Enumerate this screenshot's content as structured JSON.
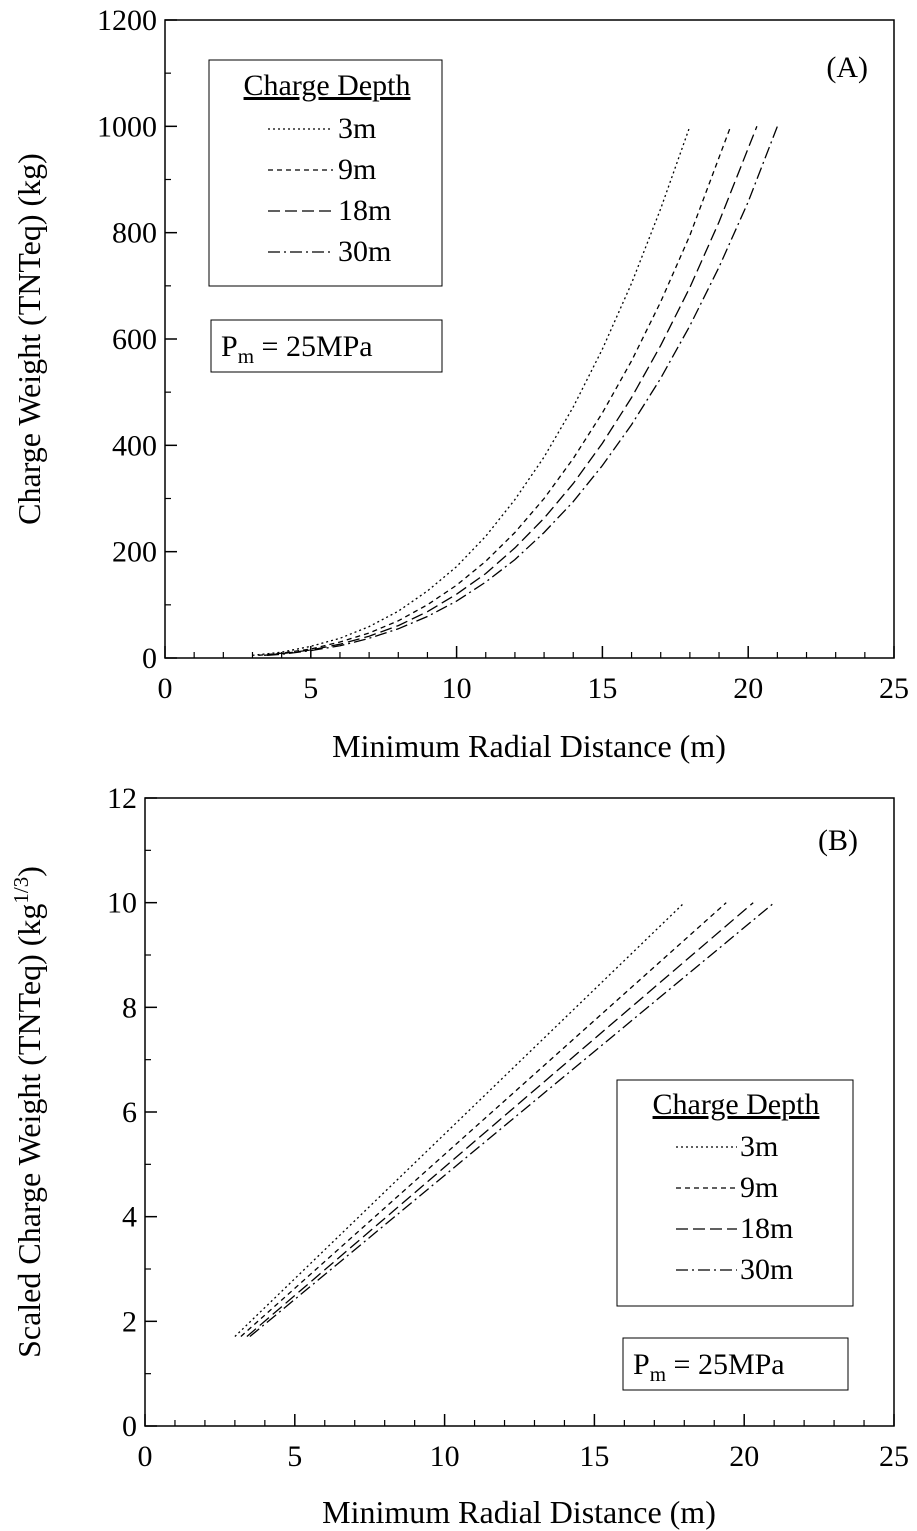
{
  "chart_data": [
    {
      "type": "line",
      "panel_label": "(A)",
      "xlabel": "Minimum Radial Distance (m)",
      "ylabel": "Charge Weight (TNTeq) (kg)",
      "xlim": [
        0,
        25
      ],
      "ylim": [
        0,
        1200
      ],
      "x_ticks": [
        0,
        5,
        10,
        15,
        20,
        25
      ],
      "y_ticks": [
        0,
        200,
        400,
        600,
        800,
        1000,
        1200
      ],
      "grid": false,
      "legend_title": "Charge Depth",
      "legend_placement": "top-left",
      "annotation": {
        "main": "P",
        "sub": "m",
        "rest": " = 25MPa"
      },
      "series": [
        {
          "name": "3m",
          "dash": "2,3",
          "x": [
            3.0,
            4.0,
            5.0,
            6.0,
            7.0,
            8.0,
            9.0,
            10.0,
            11.0,
            12.0,
            13.0,
            14.0,
            15.0,
            16.0,
            17.0,
            18.0
          ],
          "y": [
            5,
            11,
            22,
            37,
            59,
            88,
            126,
            172,
            229,
            298,
            378,
            472,
            581,
            705,
            845,
            1000
          ]
        },
        {
          "name": "9m",
          "dash": "5,4",
          "x": [
            3.2,
            4.0,
            5.0,
            6.0,
            7.0,
            8.0,
            9.0,
            10.0,
            11.0,
            12.0,
            13.0,
            14.0,
            15.0,
            16.0,
            17.0,
            18.0,
            19.4
          ],
          "y": [
            5,
            9,
            17,
            30,
            47,
            70,
            100,
            137,
            182,
            236,
            300,
            375,
            461,
            559,
            670,
            795,
            1000
          ]
        },
        {
          "name": "18m",
          "dash": "12,5",
          "x": [
            3.4,
            4.0,
            5.0,
            6.0,
            7.0,
            8.0,
            9.0,
            10.0,
            11.0,
            12.0,
            13.0,
            14.0,
            15.0,
            16.0,
            17.0,
            18.0,
            19.0,
            20.3
          ],
          "y": [
            5,
            8,
            15,
            26,
            41,
            61,
            87,
            120,
            159,
            207,
            263,
            328,
            404,
            490,
            588,
            697,
            820,
            1000
          ]
        },
        {
          "name": "30m",
          "dash": "12,4,2,4",
          "x": [
            3.5,
            4.0,
            5.0,
            6.0,
            7.0,
            8.0,
            9.0,
            10.0,
            11.0,
            12.0,
            13.0,
            14.0,
            15.0,
            16.0,
            17.0,
            18.0,
            19.0,
            20.0,
            21.0
          ],
          "y": [
            5,
            7,
            14,
            23,
            37,
            55,
            78,
            107,
            143,
            185,
            236,
            294,
            362,
            439,
            526,
            625,
            735,
            858,
            1000
          ]
        }
      ]
    },
    {
      "type": "line",
      "panel_label": "(B)",
      "xlabel": "Minimum Radial Distance (m)",
      "ylabel": {
        "main": "Scaled Charge Weight (TNTeq) (kg",
        "sup": "1/3",
        "close": ")"
      },
      "xlim": [
        0,
        25
      ],
      "ylim": [
        0,
        12
      ],
      "x_ticks": [
        0,
        5,
        10,
        15,
        20,
        25
      ],
      "y_ticks": [
        0,
        2,
        4,
        6,
        8,
        10,
        12
      ],
      "grid": false,
      "legend_title": "Charge Depth",
      "legend_placement": "center-right",
      "annotation": {
        "main": "P",
        "sub": "m",
        "rest": " = 25MPa"
      },
      "series": [
        {
          "name": "3m",
          "dash": "2,3",
          "x": [
            3.0,
            18.0
          ],
          "y": [
            1.71,
            10.0
          ]
        },
        {
          "name": "9m",
          "dash": "5,4",
          "x": [
            3.2,
            19.4
          ],
          "y": [
            1.71,
            10.0
          ]
        },
        {
          "name": "18m",
          "dash": "12,5",
          "x": [
            3.4,
            20.3
          ],
          "y": [
            1.71,
            10.0
          ]
        },
        {
          "name": "30m",
          "dash": "12,4,2,4",
          "x": [
            3.5,
            21.0
          ],
          "y": [
            1.71,
            10.0
          ]
        }
      ]
    }
  ]
}
